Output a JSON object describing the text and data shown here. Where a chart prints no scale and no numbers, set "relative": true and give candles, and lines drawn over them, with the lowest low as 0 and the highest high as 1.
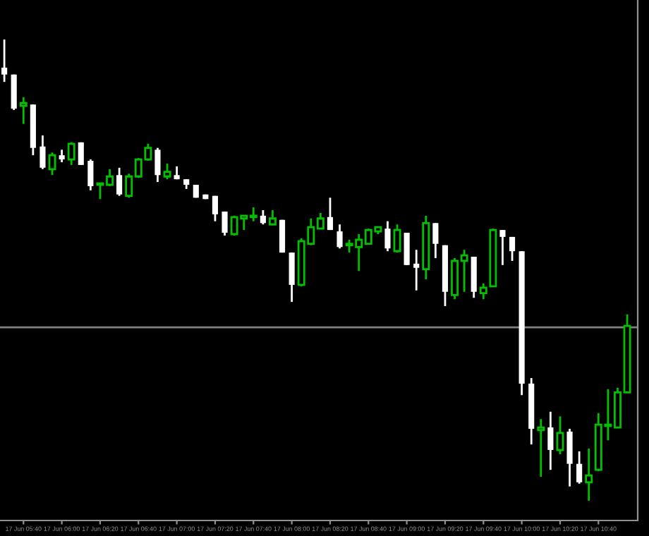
{
  "chart_data": {
    "type": "candlestick",
    "relative": true,
    "categories": [
      null,
      null,
      "17 Jun 05:40",
      null,
      null,
      null,
      "17 Jun 06:00",
      null,
      null,
      null,
      "17 Jun 06:20",
      null,
      null,
      null,
      "17 Jun 06:40",
      null,
      null,
      null,
      "17 Jun 07:00",
      null,
      null,
      null,
      "17 Jun 07:20",
      null,
      null,
      null,
      "17 Jun 07:40",
      null,
      null,
      null,
      "17 Jun 08:00",
      null,
      null,
      null,
      "17 Jun 08:20",
      null,
      null,
      null,
      "17 Jun 08:40",
      null,
      null,
      null,
      "17 Jun 09:00",
      null,
      null,
      null,
      "17 Jun 09:20",
      null,
      null,
      null,
      "17 Jun 09:40",
      null,
      null,
      null,
      "17 Jun 10:00",
      null,
      null,
      null,
      "17 Jun 10:20",
      null,
      null,
      null,
      "17 Jun 10:40",
      null,
      null,
      null
    ],
    "colors": [
      "#ffffff",
      "#ffffff",
      "#00c000",
      "#ffffff",
      "#ffffff",
      "#00c000",
      "#ffffff",
      "#00c000",
      "#ffffff",
      "#ffffff",
      "#00c000",
      "#00c000",
      "#ffffff",
      "#00c000",
      "#00c000",
      "#00c000",
      "#ffffff",
      "#00c000",
      "#ffffff",
      "#ffffff",
      "#ffffff",
      "#ffffff",
      "#ffffff",
      "#ffffff",
      "#00c000",
      "#00c000",
      "#00c000",
      "#ffffff",
      "#00c000",
      "#ffffff",
      "#ffffff",
      "#00c000",
      "#00c000",
      "#00c000",
      "#ffffff",
      "#ffffff",
      "#00c000",
      "#00c000",
      "#00c000",
      "#00c000",
      "#ffffff",
      "#00c000",
      "#ffffff",
      "#ffffff",
      "#00c000",
      "#ffffff",
      "#ffffff",
      "#00c000",
      "#00c000",
      "#ffffff",
      "#00c000",
      "#00c000",
      "#ffffff",
      "#ffffff",
      "#ffffff",
      "#ffffff",
      "#00c000",
      "#ffffff",
      "#00c000",
      "#ffffff",
      "#ffffff",
      "#00c000",
      "#00c000",
      "#00c000",
      "#00c000",
      "#00c000"
    ],
    "ohlc": [
      [
        0.939,
        1,
        0.908,
        0.924
      ],
      [
        0.924,
        0.924,
        0.847,
        0.85
      ],
      [
        0.856,
        0.875,
        0.817,
        0.862
      ],
      [
        0.859,
        0.859,
        0.749,
        0.765
      ],
      [
        0.768,
        0.792,
        0.719,
        0.722
      ],
      [
        0.719,
        0.755,
        0.706,
        0.749
      ],
      [
        0.749,
        0.761,
        0.734,
        0.74
      ],
      [
        0.74,
        0.777,
        0.728,
        0.774
      ],
      [
        0.777,
        0.777,
        0.728,
        0.728
      ],
      [
        0.737,
        0.74,
        0.673,
        0.682
      ],
      [
        0.685,
        0.688,
        0.654,
        0.688
      ],
      [
        0.685,
        0.719,
        0.682,
        0.703
      ],
      [
        0.706,
        0.722,
        0.661,
        0.664
      ],
      [
        0.661,
        0.709,
        0.657,
        0.703
      ],
      [
        0.703,
        0.743,
        0.7,
        0.74
      ],
      [
        0.74,
        0.774,
        0.737,
        0.765
      ],
      [
        0.761,
        0.765,
        0.691,
        0.706
      ],
      [
        0.703,
        0.731,
        0.697,
        0.713
      ],
      [
        0.706,
        0.725,
        0.697,
        0.697
      ],
      [
        0.697,
        0.697,
        0.676,
        0.685
      ],
      [
        0.685,
        0.685,
        0.657,
        0.657
      ],
      [
        0.664,
        0.664,
        0.654,
        0.654
      ],
      [
        0.661,
        0.661,
        0.606,
        0.621
      ],
      [
        0.627,
        0.627,
        0.575,
        0.581
      ],
      [
        0.578,
        0.618,
        0.575,
        0.615
      ],
      [
        0.612,
        0.618,
        0.587,
        0.618
      ],
      [
        0.615,
        0.636,
        0.606,
        0.618
      ],
      [
        0.618,
        0.63,
        0.599,
        0.602
      ],
      [
        0.599,
        0.63,
        0.599,
        0.612
      ],
      [
        0.609,
        0.609,
        0.538,
        0.538
      ],
      [
        0.538,
        0.538,
        0.431,
        0.468
      ],
      [
        0.468,
        0.569,
        0.465,
        0.563
      ],
      [
        0.557,
        0.612,
        0.554,
        0.593
      ],
      [
        0.59,
        0.624,
        0.59,
        0.612
      ],
      [
        0.615,
        0.657,
        0.587,
        0.587
      ],
      [
        0.584,
        0.599,
        0.547,
        0.55
      ],
      [
        0.554,
        0.566,
        0.538,
        0.557
      ],
      [
        0.55,
        0.578,
        0.498,
        0.566
      ],
      [
        0.557,
        0.59,
        0.557,
        0.587
      ],
      [
        0.584,
        0.593,
        0.578,
        0.593
      ],
      [
        0.59,
        0.606,
        0.541,
        0.547
      ],
      [
        0.541,
        0.599,
        0.538,
        0.587
      ],
      [
        0.581,
        0.581,
        0.511,
        0.511
      ],
      [
        0.514,
        0.544,
        0.456,
        0.505
      ],
      [
        0.502,
        0.618,
        0.48,
        0.602
      ],
      [
        0.602,
        0.602,
        0.526,
        0.557
      ],
      [
        0.554,
        0.554,
        0.422,
        0.453
      ],
      [
        0.446,
        0.526,
        0.437,
        0.52
      ],
      [
        0.52,
        0.544,
        0.453,
        0.532
      ],
      [
        0.529,
        0.529,
        0.44,
        0.453
      ],
      [
        0.45,
        0.471,
        0.437,
        0.462
      ],
      [
        0.465,
        0.59,
        0.465,
        0.587
      ],
      [
        0.587,
        0.587,
        0.511,
        0.572
      ],
      [
        0.572,
        0.572,
        0.52,
        0.541
      ],
      [
        0.541,
        0.541,
        0.229,
        0.254
      ],
      [
        0.254,
        0.266,
        0.122,
        0.156
      ],
      [
        0.153,
        0.177,
        0.052,
        0.159
      ],
      [
        0.159,
        0.193,
        0.067,
        0.11
      ],
      [
        0.11,
        0.183,
        0.101,
        0.147
      ],
      [
        0.15,
        0.156,
        0.031,
        0.08
      ],
      [
        0.08,
        0.107,
        0.037,
        0.04
      ],
      [
        0.04,
        0.113,
        0,
        0.055
      ],
      [
        0.067,
        0.19,
        0.064,
        0.165
      ],
      [
        0.162,
        0.242,
        0.131,
        0.165
      ],
      [
        0.159,
        0.245,
        0.159,
        0.235
      ],
      [
        0.235,
        0.404,
        0.235,
        0.379
      ]
    ],
    "ref_lines": [
      {
        "axis": "y",
        "value": 0.376,
        "color": "#808080"
      }
    ]
  }
}
